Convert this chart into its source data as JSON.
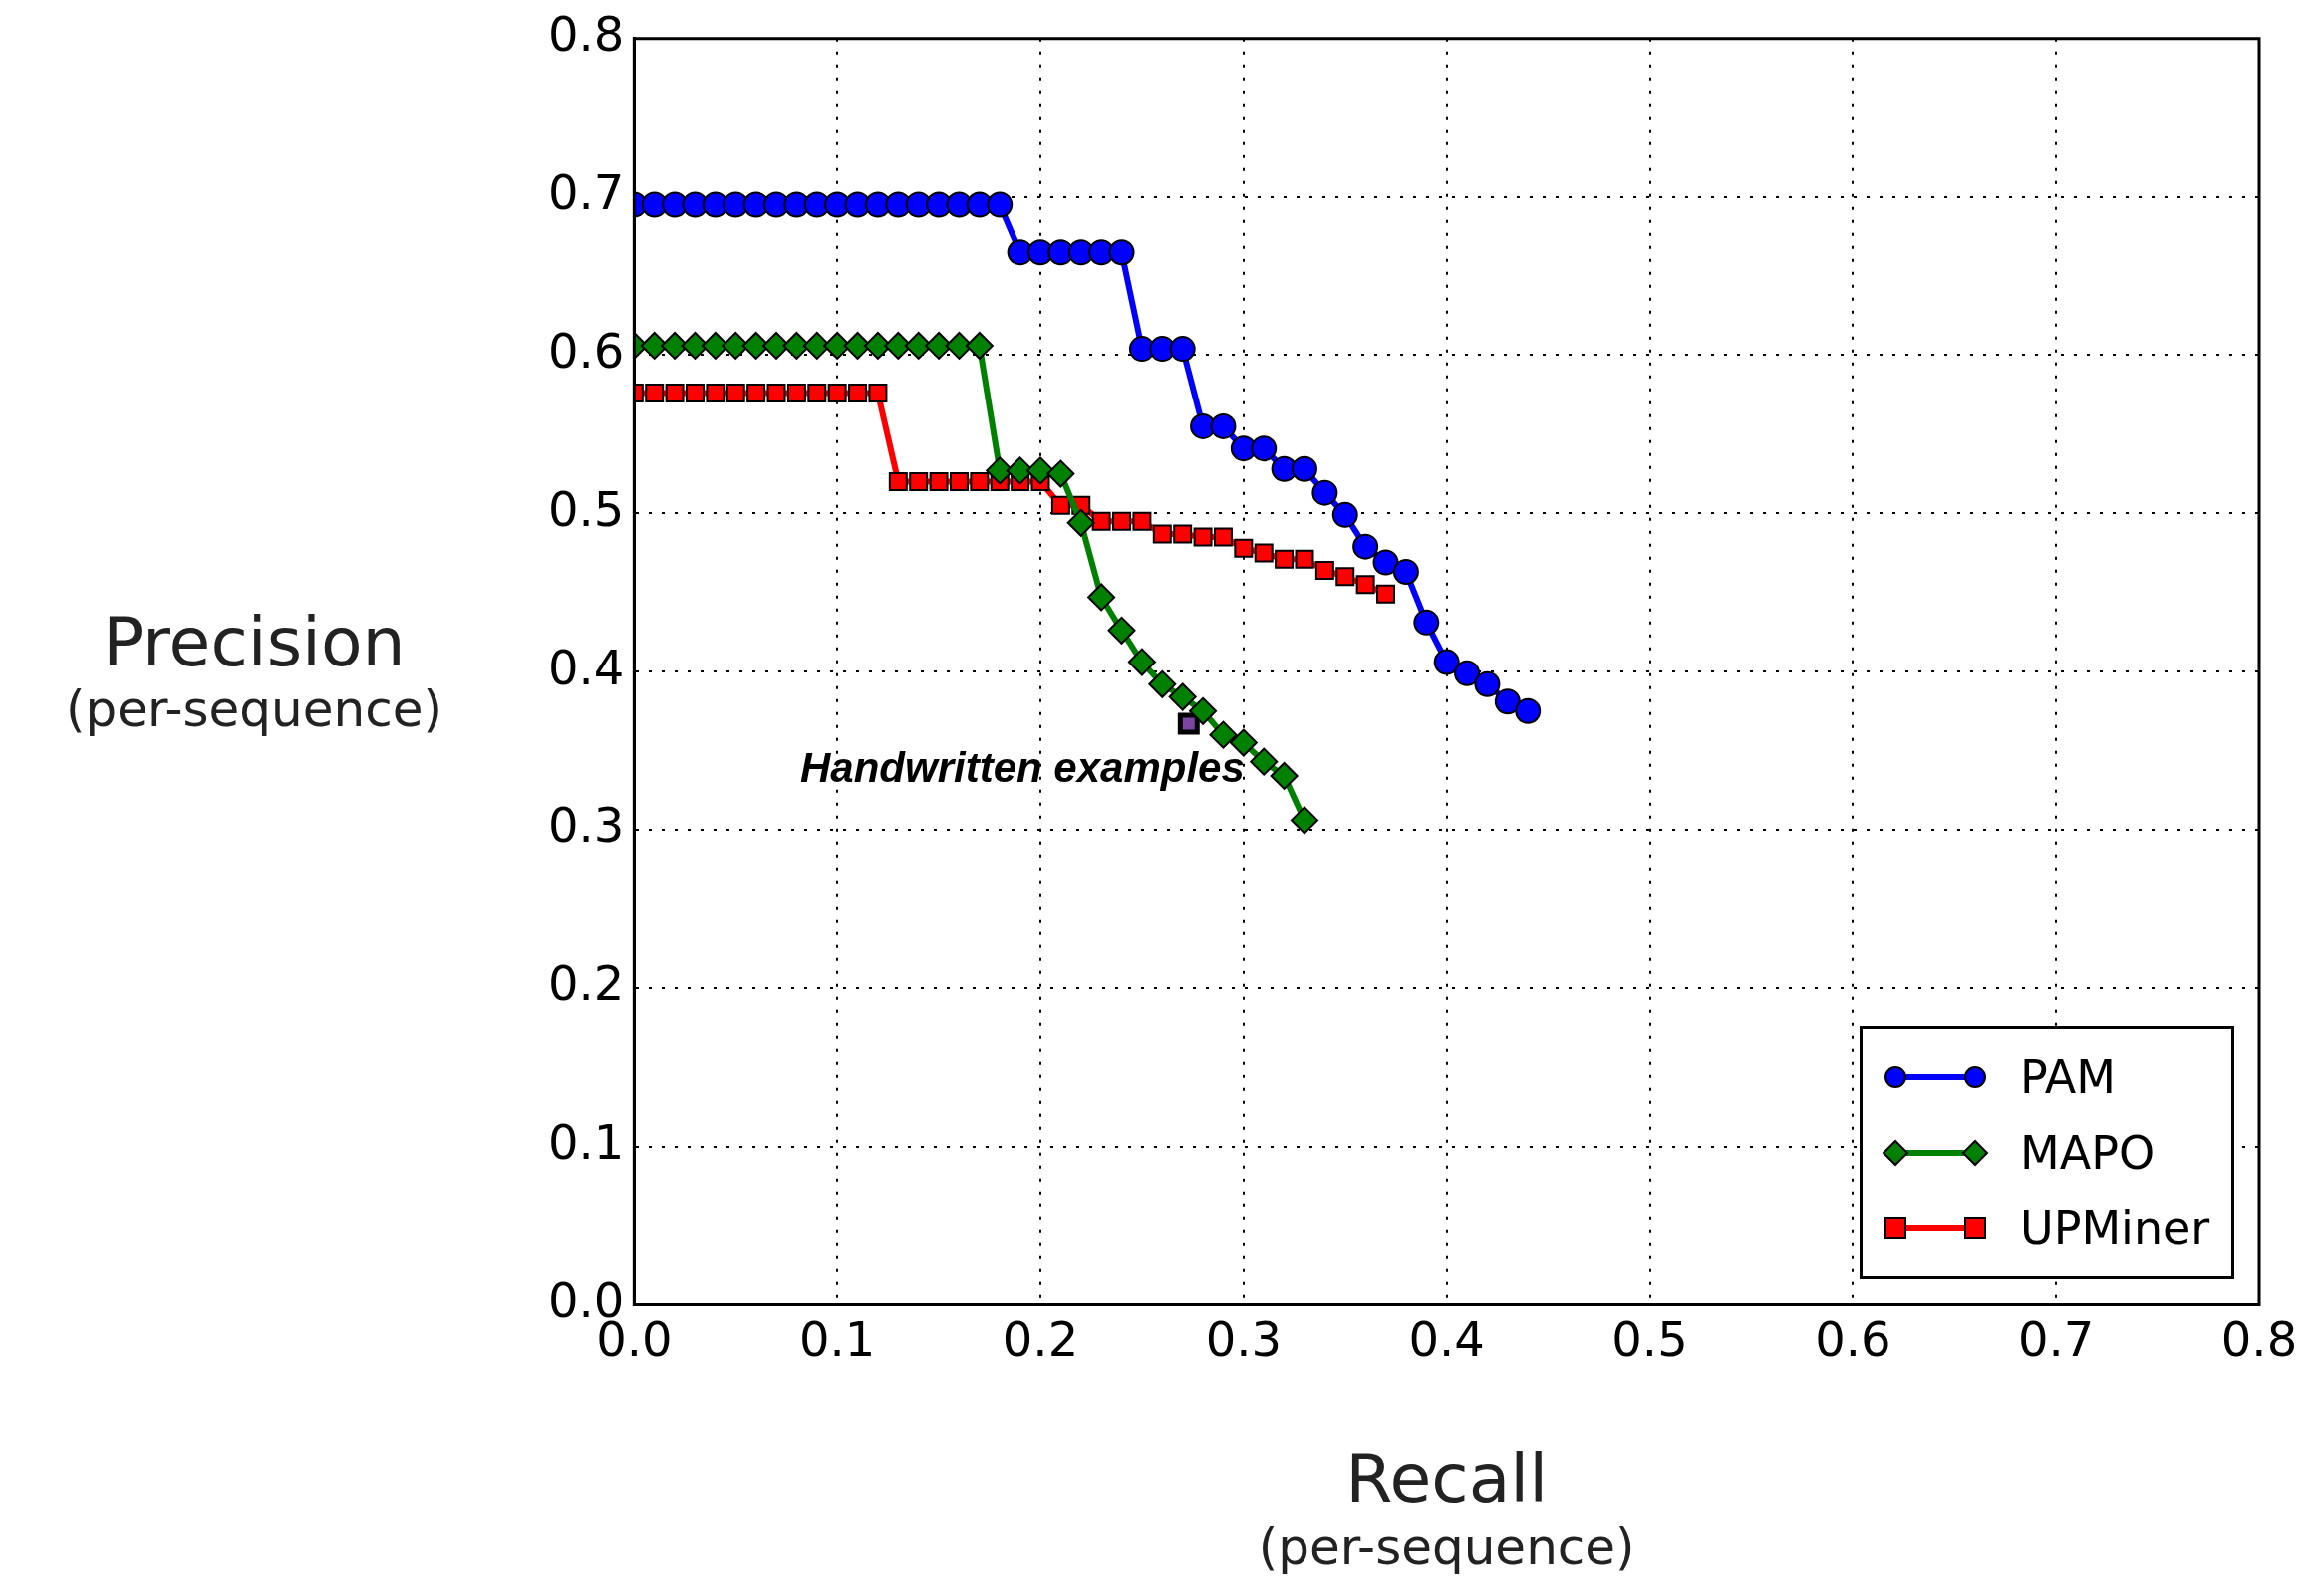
{
  "chart_data": {
    "type": "line",
    "xlabel": "Recall\n(per-sequence)",
    "ylabel": "Precision\n(per-sequence)",
    "xlim": [
      0,
      0.8
    ],
    "ylim": [
      0,
      0.8
    ],
    "xticks": [
      {
        "value": 0,
        "label": "0.0"
      },
      0.1,
      0.2,
      0.3,
      0.4,
      0.5,
      0.6,
      0.7,
      0.8
    ],
    "yticks": [
      {
        "value": 0,
        "label": "0.0"
      },
      0.1,
      0.2,
      0.3,
      0.4,
      0.5,
      0.6,
      0.7,
      0.8
    ],
    "grid": true,
    "legend": "bottom right",
    "line_style": "solid",
    "series": [
      {
        "name": "PAM",
        "color": "#0000ff",
        "marker": "circle",
        "x": [
          0,
          0.01,
          0.02,
          0.03,
          0.04,
          0.05,
          0.06,
          0.07,
          0.08,
          0.09,
          0.1,
          0.11,
          0.12,
          0.13,
          0.14,
          0.15,
          0.16,
          0.17,
          0.18,
          0.19,
          0.2,
          0.21,
          0.22,
          0.23,
          0.24,
          0.25,
          0.26,
          0.27,
          0.28,
          0.29,
          0.3,
          0.31,
          0.32,
          0.33,
          0.34,
          0.35,
          0.36,
          0.37,
          0.38,
          0.39,
          0.4,
          0.41,
          0.42,
          0.43,
          0.44
        ],
        "values": [
          0.695,
          0.695,
          0.695,
          0.695,
          0.695,
          0.695,
          0.695,
          0.695,
          0.695,
          0.695,
          0.695,
          0.695,
          0.695,
          0.695,
          0.695,
          0.695,
          0.695,
          0.695,
          0.695,
          0.665,
          0.665,
          0.665,
          0.665,
          0.665,
          0.665,
          0.604,
          0.604,
          0.604,
          0.555,
          0.555,
          0.541,
          0.541,
          0.528,
          0.528,
          0.513,
          0.499,
          0.479,
          0.469,
          0.463,
          0.431,
          0.406,
          0.399,
          0.392,
          0.381,
          0.375
        ]
      },
      {
        "name": "MAPO",
        "color": "#008000",
        "marker": "diamond",
        "x": [
          0,
          0.01,
          0.02,
          0.03,
          0.04,
          0.05,
          0.06,
          0.07,
          0.08,
          0.09,
          0.1,
          0.11,
          0.12,
          0.13,
          0.14,
          0.15,
          0.16,
          0.17,
          0.18,
          0.19,
          0.2,
          0.21,
          0.22,
          0.23,
          0.24,
          0.25,
          0.26,
          0.27,
          0.28,
          0.29,
          0.3,
          0.31,
          0.32,
          0.33
        ],
        "values": [
          0.606,
          0.606,
          0.606,
          0.606,
          0.606,
          0.606,
          0.606,
          0.606,
          0.606,
          0.606,
          0.606,
          0.606,
          0.606,
          0.606,
          0.606,
          0.606,
          0.606,
          0.606,
          0.527,
          0.527,
          0.527,
          0.525,
          0.494,
          0.447,
          0.426,
          0.406,
          0.392,
          0.384,
          0.375,
          0.36,
          0.355,
          0.343,
          0.334,
          0.306
        ]
      },
      {
        "name": "UPMiner",
        "color": "#ff0000",
        "marker": "square",
        "x": [
          0,
          0.01,
          0.02,
          0.03,
          0.04,
          0.05,
          0.06,
          0.07,
          0.08,
          0.09,
          0.1,
          0.11,
          0.12,
          0.13,
          0.14,
          0.15,
          0.16,
          0.17,
          0.18,
          0.19,
          0.2,
          0.21,
          0.22,
          0.23,
          0.24,
          0.25,
          0.26,
          0.27,
          0.28,
          0.29,
          0.3,
          0.31,
          0.32,
          0.33,
          0.34,
          0.35,
          0.36,
          0.37
        ],
        "values": [
          0.576,
          0.576,
          0.576,
          0.576,
          0.576,
          0.576,
          0.576,
          0.576,
          0.576,
          0.576,
          0.576,
          0.576,
          0.576,
          0.52,
          0.52,
          0.52,
          0.52,
          0.52,
          0.52,
          0.52,
          0.52,
          0.505,
          0.505,
          0.495,
          0.495,
          0.495,
          0.487,
          0.487,
          0.485,
          0.485,
          0.478,
          0.475,
          0.471,
          0.471,
          0.464,
          0.46,
          0.455,
          0.449
        ]
      },
      {
        "type": "scatter",
        "color": "#7b46a0",
        "marker": "square",
        "x": [
          0.273
        ],
        "values": [
          0.367
        ]
      }
    ],
    "annotations": [
      {
        "text": "Handwritten examples",
        "x": 0.273,
        "y": 0.367
      }
    ]
  }
}
